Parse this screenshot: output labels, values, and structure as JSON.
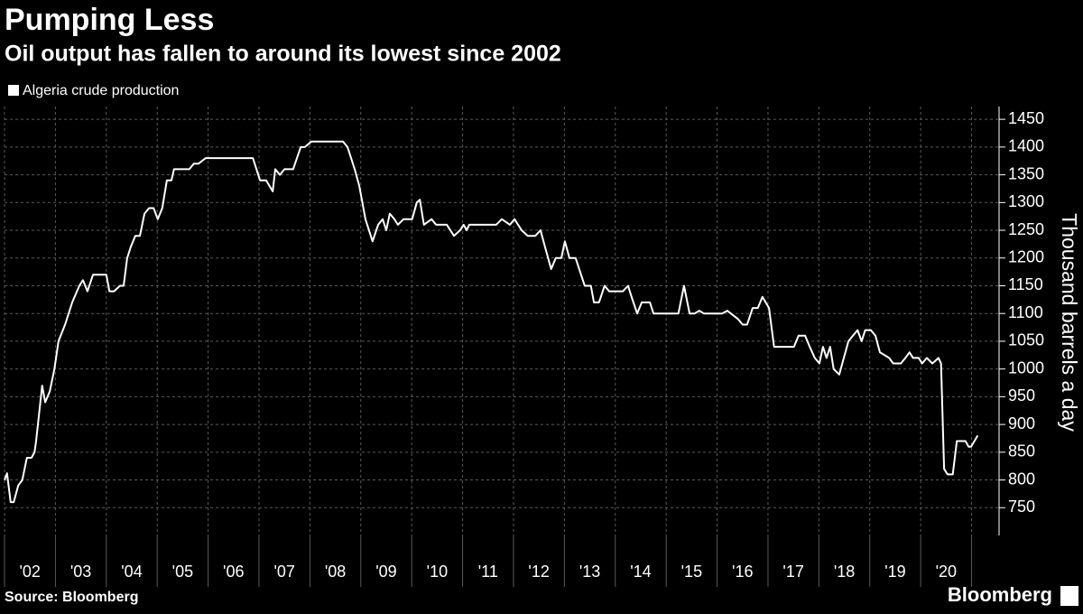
{
  "chart_data": {
    "type": "line",
    "title": "Pumping Less",
    "subtitle": "Oil output has fallen to around its lowest since 2002",
    "ylabel": "Thousand barrels a day",
    "source": "Source: Bloomberg",
    "logo": "Bloomberg",
    "series": [
      {
        "name": "Algeria crude production",
        "color": "#ffffff",
        "x": [
          2002.0,
          2002.05,
          2002.12,
          2002.18,
          2002.27,
          2002.35,
          2002.44,
          2002.53,
          2002.59,
          2002.62,
          2002.74,
          2002.8,
          2002.89,
          2002.98,
          2003.06,
          2003.19,
          2003.33,
          2003.47,
          2003.54,
          2003.63,
          2003.74,
          2004.0,
          2004.06,
          2004.15,
          2004.27,
          2004.34,
          2004.41,
          2004.48,
          2004.57,
          2004.66,
          2004.75,
          2004.84,
          2004.93,
          2005.01,
          2005.1,
          2005.19,
          2005.28,
          2005.33,
          2005.63,
          2005.72,
          2005.81,
          2005.95,
          2006.88,
          2007.02,
          2007.14,
          2007.27,
          2007.32,
          2007.41,
          2007.5,
          2007.67,
          2007.82,
          2007.9,
          2008.03,
          2008.65,
          2008.74,
          2008.88,
          2008.97,
          2009.09,
          2009.23,
          2009.34,
          2009.43,
          2009.5,
          2009.57,
          2009.66,
          2009.73,
          2009.84,
          2010.01,
          2010.1,
          2010.16,
          2010.24,
          2010.39,
          2010.48,
          2010.69,
          2010.83,
          2010.95,
          2011.02,
          2011.08,
          2011.13,
          2011.66,
          2011.77,
          2011.93,
          2012.02,
          2012.16,
          2012.28,
          2012.43,
          2012.53,
          2012.62,
          2012.74,
          2012.83,
          2012.94,
          2013.01,
          2013.1,
          2013.22,
          2013.4,
          2013.52,
          2013.58,
          2013.68,
          2013.79,
          2013.88,
          2014.15,
          2014.25,
          2014.32,
          2014.43,
          2014.52,
          2014.68,
          2014.75,
          2015.24,
          2015.35,
          2015.46,
          2015.56,
          2015.65,
          2015.74,
          2016.1,
          2016.2,
          2016.27,
          2016.41,
          2016.5,
          2016.59,
          2016.7,
          2016.8,
          2016.89,
          2017.02,
          2017.12,
          2017.43,
          2017.51,
          2017.6,
          2017.73,
          2017.82,
          2017.92,
          2018.01,
          2018.08,
          2018.15,
          2018.22,
          2018.29,
          2018.4,
          2018.49,
          2018.58,
          2018.67,
          2018.76,
          2018.84,
          2018.91,
          2019.02,
          2019.11,
          2019.2,
          2019.38,
          2019.46,
          2019.61,
          2019.7,
          2019.78,
          2019.85,
          2019.96,
          2020.03,
          2020.12,
          2020.23,
          2020.35,
          2020.4,
          2020.46,
          2020.53,
          2020.63,
          2020.71,
          2020.88,
          2020.94,
          2020.99,
          2021.12
        ],
        "values": [
          800,
          812,
          760,
          760,
          790,
          800,
          840,
          840,
          850,
          870,
          970,
          940,
          960,
          1000,
          1050,
          1080,
          1120,
          1150,
          1160,
          1140,
          1170,
          1170,
          1140,
          1140,
          1150,
          1150,
          1200,
          1220,
          1240,
          1240,
          1280,
          1290,
          1290,
          1270,
          1290,
          1340,
          1340,
          1360,
          1360,
          1370,
          1370,
          1380,
          1380,
          1340,
          1340,
          1320,
          1360,
          1350,
          1360,
          1360,
          1400,
          1400,
          1410,
          1410,
          1400,
          1360,
          1330,
          1270,
          1230,
          1260,
          1270,
          1250,
          1280,
          1270,
          1260,
          1270,
          1270,
          1300,
          1305,
          1260,
          1270,
          1260,
          1260,
          1240,
          1250,
          1260,
          1250,
          1260,
          1260,
          1270,
          1260,
          1270,
          1250,
          1240,
          1240,
          1250,
          1220,
          1180,
          1200,
          1200,
          1230,
          1200,
          1200,
          1150,
          1150,
          1120,
          1120,
          1150,
          1140,
          1140,
          1150,
          1130,
          1100,
          1120,
          1120,
          1100,
          1100,
          1150,
          1100,
          1100,
          1105,
          1100,
          1100,
          1105,
          1100,
          1090,
          1080,
          1080,
          1110,
          1110,
          1130,
          1110,
          1040,
          1040,
          1040,
          1060,
          1060,
          1040,
          1020,
          1010,
          1040,
          1020,
          1040,
          1000,
          990,
          1020,
          1050,
          1060,
          1070,
          1050,
          1070,
          1070,
          1060,
          1030,
          1020,
          1010,
          1010,
          1020,
          1030,
          1020,
          1020,
          1010,
          1020,
          1010,
          1020,
          1010,
          820,
          810,
          810,
          870,
          870,
          860,
          860,
          880
        ]
      }
    ],
    "xlim": [
      2002,
      2021.54
    ],
    "xticks": [
      {
        "value": 2002,
        "label": "'02"
      },
      {
        "value": 2003,
        "label": "'03"
      },
      {
        "value": 2004,
        "label": "'04"
      },
      {
        "value": 2005,
        "label": "'05"
      },
      {
        "value": 2006,
        "label": "'06"
      },
      {
        "value": 2007,
        "label": "'07"
      },
      {
        "value": 2008,
        "label": "'08"
      },
      {
        "value": 2009,
        "label": "'09"
      },
      {
        "value": 2010,
        "label": "'10"
      },
      {
        "value": 2011,
        "label": "'11"
      },
      {
        "value": 2012,
        "label": "'12"
      },
      {
        "value": 2013,
        "label": "'13"
      },
      {
        "value": 2014,
        "label": "'14"
      },
      {
        "value": 2015,
        "label": "'15"
      },
      {
        "value": 2016,
        "label": "'16"
      },
      {
        "value": 2017,
        "label": "'17"
      },
      {
        "value": 2018,
        "label": "'18"
      },
      {
        "value": 2019,
        "label": "'19"
      },
      {
        "value": 2020,
        "label": "'20"
      },
      {
        "value": 2021,
        "label": null
      }
    ],
    "ylim": [
      700,
      1473
    ],
    "yticks": [
      750,
      800,
      850,
      900,
      950,
      1000,
      1050,
      1100,
      1150,
      1200,
      1250,
      1300,
      1350,
      1400,
      1450
    ],
    "grid": true
  }
}
